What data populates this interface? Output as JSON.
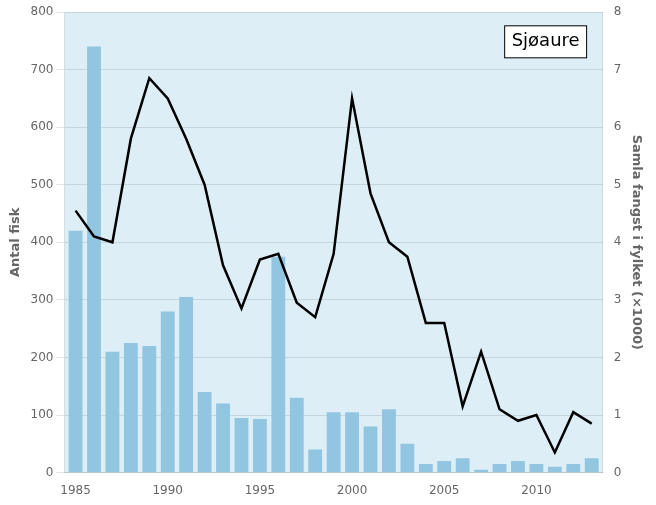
{
  "chart_data": {
    "type": "bar",
    "x": [
      1985,
      1986,
      1987,
      1988,
      1989,
      1990,
      1991,
      1992,
      1993,
      1994,
      1995,
      1996,
      1997,
      1998,
      1999,
      2000,
      2001,
      2002,
      2003,
      2004,
      2005,
      2006,
      2007,
      2008,
      2009,
      2010,
      2011,
      2012,
      2013
    ],
    "xlim": [
      1984.4,
      2013.6
    ],
    "xticks": [
      1985,
      1990,
      1995,
      2000,
      2005,
      2010
    ],
    "ylabel": "Antal fisk",
    "ylim": [
      0,
      800
    ],
    "yticks": [
      0,
      100,
      200,
      300,
      400,
      500,
      600,
      700,
      800
    ],
    "y2label": "Samla fangst i fylket (×1000)",
    "y2lim": [
      0,
      8
    ],
    "y2ticks": [
      0,
      1,
      2,
      3,
      4,
      5,
      6,
      7,
      8
    ],
    "grid": "y",
    "annotation": "Sjøaure",
    "series": [
      {
        "type": "bar",
        "color": "#92C5E0",
        "values": [
          420,
          740,
          210,
          225,
          220,
          280,
          305,
          140,
          120,
          95,
          93,
          375,
          130,
          40,
          105,
          105,
          80,
          110,
          50,
          15,
          20,
          25,
          5,
          15,
          20,
          15,
          10,
          15,
          25
        ]
      },
      {
        "type": "line",
        "axis": "y2",
        "color": "#000000",
        "values": [
          4.55,
          4.1,
          4.0,
          5.8,
          6.85,
          6.5,
          5.8,
          5.0,
          3.6,
          2.85,
          3.7,
          3.8,
          2.95,
          2.7,
          3.8,
          6.5,
          4.85,
          4.0,
          3.75,
          2.6,
          2.6,
          1.15,
          2.1,
          1.1,
          0.9,
          1.0,
          0.35,
          1.05,
          0.85
        ]
      }
    ]
  }
}
